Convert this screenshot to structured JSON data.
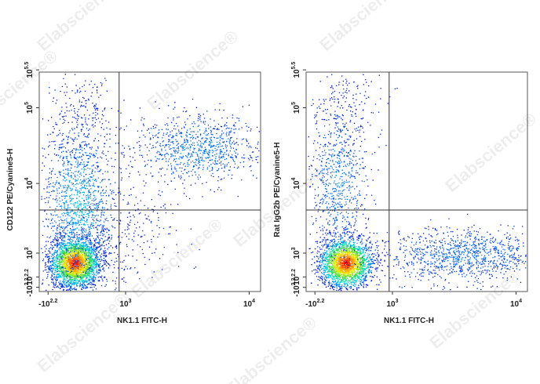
{
  "watermark": "Elabscience®",
  "chart_data": [
    {
      "type": "scatter",
      "x_label": "NK1.1 FITC-H",
      "y_label": "CD122 PE/Cyanine5-H",
      "xlim": [
        -250,
        12000
      ],
      "ylim": [
        -220,
        316228
      ],
      "xticks": [
        {
          "value": -158.49,
          "label": "-10",
          "exponent": "2.2"
        },
        {
          "value": 1000,
          "label": "10",
          "exponent": "3"
        },
        {
          "value": 10000,
          "label": "10",
          "exponent": "4"
        }
      ],
      "yticks": [
        {
          "value": -158.49,
          "label": "-10",
          "exponent": "2.2"
        },
        {
          "value": 158.49,
          "label": "10",
          "exponent": "2.2"
        },
        {
          "value": 1000,
          "label": "10",
          "exponent": "3"
        },
        {
          "value": 10000,
          "label": "10",
          "exponent": "4"
        },
        {
          "value": 100000,
          "label": "10",
          "exponent": "5"
        },
        {
          "value": 316228,
          "label": "10",
          "exponent": "5.5"
        }
      ],
      "gate_x": 866,
      "gate_y": 4410
    },
    {
      "type": "scatter",
      "x_label": "NK1.1 FITC-H",
      "y_label": "Rat IgG2b PE/Cyanine5-H",
      "xlim": [
        -250,
        12000
      ],
      "ylim": [
        -220,
        316228
      ],
      "xticks": [
        {
          "value": -158.49,
          "label": "-10",
          "exponent": "2.2"
        },
        {
          "value": 1000,
          "label": "10",
          "exponent": "3"
        },
        {
          "value": 10000,
          "label": "10",
          "exponent": "4"
        }
      ],
      "yticks": [
        {
          "value": -158.49,
          "label": "-10",
          "exponent": "2.2"
        },
        {
          "value": 158.49,
          "label": "10",
          "exponent": "2.2"
        },
        {
          "value": 1000,
          "label": "10",
          "exponent": "3"
        },
        {
          "value": 10000,
          "label": "10",
          "exponent": "4"
        },
        {
          "value": 100000,
          "label": "10",
          "exponent": "5"
        },
        {
          "value": 316228,
          "label": "10",
          "exponent": "5.5"
        }
      ],
      "gate_x": 930,
      "gate_y": 4410
    }
  ]
}
